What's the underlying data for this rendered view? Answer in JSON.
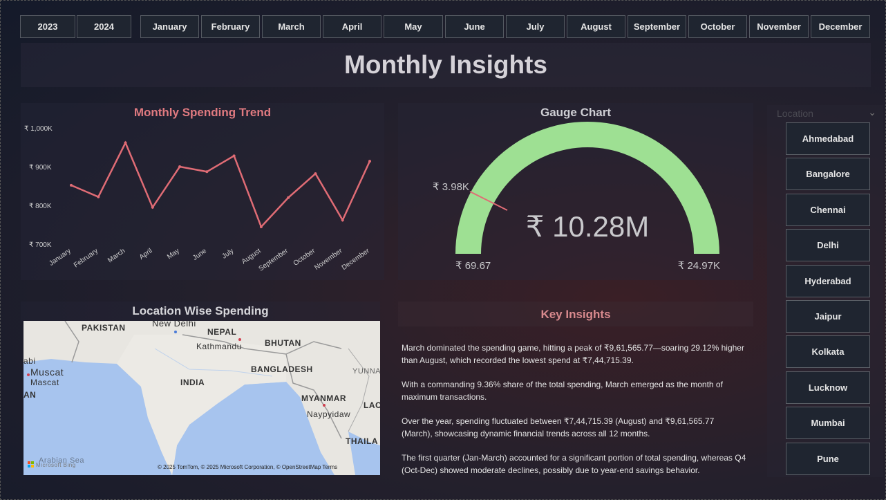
{
  "years": [
    "2023",
    "2024"
  ],
  "months": [
    "January",
    "February",
    "March",
    "April",
    "May",
    "June",
    "July",
    "August",
    "September",
    "October",
    "November",
    "December"
  ],
  "page_title": "Monthly Insights",
  "trend": {
    "title": "Monthly Spending Trend",
    "color": "#e06c75"
  },
  "chart_data": {
    "type": "line",
    "title": "Monthly Spending Trend",
    "categories": [
      "January",
      "February",
      "March",
      "April",
      "May",
      "June",
      "July",
      "August",
      "September",
      "October",
      "November",
      "December"
    ],
    "values": [
      852000,
      822000,
      961565.77,
      795000,
      900000,
      887000,
      928000,
      744715.39,
      820000,
      882000,
      762000,
      914000
    ],
    "yticks": [
      "₹ 700K",
      "₹ 800K",
      "₹ 900K",
      "₹ 1,000K"
    ],
    "ylim": [
      700000,
      1000000
    ]
  },
  "gauge": {
    "title": "Gauge Chart",
    "value_label": "₹ 10.28M",
    "min_label": "₹ 69.67",
    "max_label": "₹ 24.97K",
    "target_label": "₹ 3.98K",
    "fill_color": "#9ee093",
    "target_color": "#e06c75"
  },
  "map": {
    "title": "Location Wise Spending",
    "labels": {
      "pakistan": "PAKISTAN",
      "new_delhi": "New Delhi",
      "nepal": "NEPAL",
      "kathmandu": "Kathmandu",
      "bhutan": "BHUTAN",
      "india": "INDIA",
      "bangladesh": "BANGLADESH",
      "yunnan": "YUNNAN",
      "muscat1": "Muscat",
      "muscat2": "Mascat",
      "abi": "abi",
      "an": "AN",
      "myanmar": "MYANMAR",
      "naypyidaw": "Naypyidaw",
      "lao": "LAO",
      "thaila": "THAILA",
      "arabian_sea": "Arabian Sea",
      "bing": "Microsoft Bing",
      "copyright": "© 2025 TomTom, © 2025 Microsoft Corporation, © OpenStreetMap Terms"
    }
  },
  "key_insights": {
    "title": "Key Insights",
    "paragraphs": [
      "March dominated the spending game, hitting a peak of ₹9,61,565.77—soaring 29.12% higher than August, which recorded the lowest spend at ₹7,44,715.39.",
      "With a commanding 9.36% share of the total spending, March emerged as the month of maximum transactions.",
      "Over the year, spending fluctuated between ₹7,44,715.39 (August) and ₹9,61,565.77 (March), showcasing dynamic financial trends across all 12 months.",
      "The first quarter (Jan-March) accounted for a significant portion of total spending, whereas Q4 (Oct-Dec) showed moderate declines, possibly due to year-end savings behavior."
    ]
  },
  "location_slicer": {
    "header": "Location",
    "items": [
      "Ahmedabad",
      "Bangalore",
      "Chennai",
      "Delhi",
      "Hyderabad",
      "Jaipur",
      "Kolkata",
      "Lucknow",
      "Mumbai",
      "Pune"
    ]
  }
}
